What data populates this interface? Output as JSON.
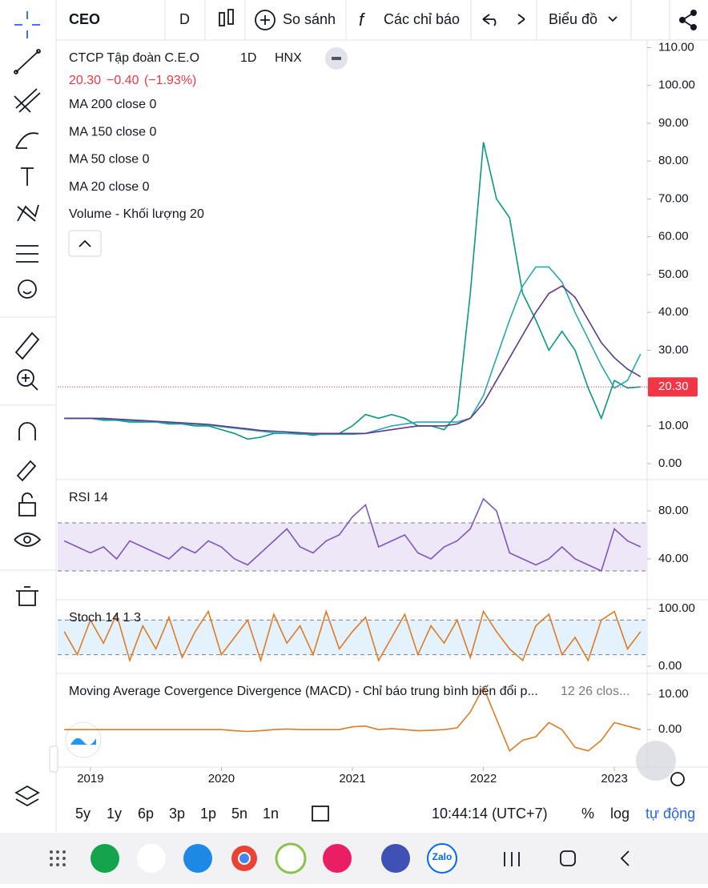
{
  "toolbar": {
    "symbol": "CEO",
    "interval": "D",
    "compare": "So sánh",
    "indicators": "Các chỉ báo",
    "layout": "Biểu đồ"
  },
  "legend": {
    "name": "CTCP Tập đoàn C.E.O",
    "interval": "1D",
    "exchange": "HNX",
    "change": "−0.40",
    "change_pct": "(−1.93%)",
    "studies": [
      "MA 200 close 0",
      "MA 150 close 0",
      "MA 50 close 0",
      "MA 20 close 0",
      "Volume - Khối lượng 20"
    ]
  },
  "chart_data": [
    {
      "type": "line",
      "name": "price",
      "xlim": [
        2018.75,
        2023.25
      ],
      "xticks": [
        2019,
        2020,
        2021,
        2022,
        2023
      ],
      "ylim": [
        -4,
        112
      ],
      "yticks": [
        {
          "value": 110,
          "label": "110.00"
        },
        {
          "value": 100,
          "label": "100.00"
        },
        {
          "value": 90,
          "label": "90.00"
        },
        {
          "value": 80,
          "label": "80.00"
        },
        {
          "value": 70,
          "label": "70.00"
        },
        {
          "value": 60,
          "label": "60.00"
        },
        {
          "value": 50,
          "label": "50.00"
        },
        {
          "value": 40,
          "label": "40.00"
        },
        {
          "value": 30,
          "label": "30.00"
        },
        {
          "value": 20,
          "label": "20.00"
        },
        {
          "value": 10,
          "label": "10.00"
        },
        {
          "value": 0,
          "label": "0.00"
        }
      ],
      "last_price": {
        "value": 20.3,
        "label": "20.30"
      },
      "x": [
        2018.8,
        2018.9,
        2019.0,
        2019.1,
        2019.2,
        2019.3,
        2019.4,
        2019.5,
        2019.6,
        2019.7,
        2019.8,
        2019.9,
        2020.0,
        2020.1,
        2020.2,
        2020.3,
        2020.4,
        2020.5,
        2020.6,
        2020.7,
        2020.8,
        2020.9,
        2021.0,
        2021.1,
        2021.2,
        2021.3,
        2021.4,
        2021.5,
        2021.6,
        2021.7,
        2021.8,
        2021.9,
        2022.0,
        2022.1,
        2022.2,
        2022.3,
        2022.4,
        2022.5,
        2022.6,
        2022.7,
        2022.8,
        2022.9,
        2023.0,
        2023.1,
        2023.2
      ],
      "series": [
        {
          "color": "#089981",
          "values": [
            12,
            12,
            12,
            11.5,
            11.5,
            11,
            11,
            11,
            10.5,
            10.5,
            10,
            10,
            9,
            8,
            6.5,
            7,
            8,
            8,
            8,
            7.5,
            8,
            8,
            10,
            13,
            12,
            13,
            12,
            10,
            10,
            9,
            13,
            45,
            85,
            70,
            65,
            45,
            38,
            30,
            35,
            30,
            20,
            12,
            22,
            20,
            20.3
          ]
        },
        {
          "color": "#26a6b2",
          "values": [
            12,
            12,
            12,
            11.8,
            11.6,
            11.4,
            11.2,
            11,
            10.8,
            10.6,
            10.4,
            10.2,
            9.8,
            9.4,
            9,
            8.6,
            8.2,
            8,
            7.8,
            7.8,
            7.8,
            7.8,
            7.8,
            8,
            9,
            10,
            10.5,
            11,
            11,
            11,
            11,
            12,
            18,
            28,
            38,
            47,
            52,
            52,
            48,
            40,
            33,
            26,
            20,
            22,
            29
          ]
        },
        {
          "color": "#5b3a8e",
          "values": [
            12,
            12,
            12,
            12,
            11.8,
            11.6,
            11.4,
            11.2,
            11,
            10.8,
            10.6,
            10.4,
            10,
            9.6,
            9.2,
            8.8,
            8.6,
            8.4,
            8.2,
            8,
            8,
            8,
            8,
            8,
            8.5,
            9,
            9.5,
            10,
            10,
            10,
            10.5,
            12,
            16,
            22,
            28,
            34,
            40,
            45,
            47,
            44,
            38,
            32,
            28,
            25,
            23
          ]
        }
      ]
    },
    {
      "type": "line",
      "name": "rsi",
      "title": "RSI 14",
      "xlim": [
        2018.75,
        2023.25
      ],
      "ylim": [
        6.7,
        105.3
      ],
      "yticks": [
        {
          "value": 80,
          "label": "80.00"
        },
        {
          "value": 40,
          "label": "40.00"
        }
      ],
      "bands": [
        70,
        30
      ],
      "band_color": "#ede7f8",
      "x": [
        2018.8,
        2018.9,
        2019.0,
        2019.1,
        2019.2,
        2019.3,
        2019.4,
        2019.5,
        2019.6,
        2019.7,
        2019.8,
        2019.9,
        2020.0,
        2020.1,
        2020.2,
        2020.3,
        2020.4,
        2020.5,
        2020.6,
        2020.7,
        2020.8,
        2020.9,
        2021.0,
        2021.1,
        2021.2,
        2021.3,
        2021.4,
        2021.5,
        2021.6,
        2021.7,
        2021.8,
        2021.9,
        2022.0,
        2022.1,
        2022.2,
        2022.3,
        2022.4,
        2022.5,
        2022.6,
        2022.7,
        2022.8,
        2022.9,
        2023.0,
        2023.1,
        2023.2
      ],
      "series": [
        {
          "color": "#7e57c2",
          "values": [
            55,
            50,
            45,
            50,
            40,
            55,
            50,
            45,
            40,
            50,
            45,
            55,
            50,
            40,
            35,
            45,
            55,
            65,
            50,
            45,
            55,
            60,
            75,
            85,
            50,
            55,
            60,
            45,
            40,
            50,
            55,
            65,
            90,
            80,
            45,
            40,
            35,
            40,
            50,
            40,
            35,
            30,
            65,
            55,
            50
          ]
        }
      ]
    },
    {
      "type": "line",
      "name": "stoch",
      "title": "Stoch 14 1 3",
      "xlim": [
        2018.75,
        2023.25
      ],
      "ylim": [
        -11.1,
        113.9
      ],
      "yticks": [
        {
          "value": 100,
          "label": "100.00"
        },
        {
          "value": 0,
          "label": "0.00"
        }
      ],
      "bands": [
        80,
        20
      ],
      "band_color": "#e3f2fd",
      "x": [
        2018.8,
        2018.9,
        2019.0,
        2019.1,
        2019.2,
        2019.3,
        2019.4,
        2019.5,
        2019.6,
        2019.7,
        2019.8,
        2019.9,
        2020.0,
        2020.1,
        2020.2,
        2020.3,
        2020.4,
        2020.5,
        2020.6,
        2020.7,
        2020.8,
        2020.9,
        2021.0,
        2021.1,
        2021.2,
        2021.3,
        2021.4,
        2021.5,
        2021.6,
        2021.7,
        2021.8,
        2021.9,
        2022.0,
        2022.1,
        2022.2,
        2022.3,
        2022.4,
        2022.5,
        2022.6,
        2022.7,
        2022.8,
        2022.9,
        2023.0,
        2023.1,
        2023.2
      ],
      "series": [
        {
          "color": "#e07b24",
          "values": [
            60,
            20,
            80,
            40,
            90,
            10,
            70,
            30,
            85,
            15,
            60,
            95,
            20,
            50,
            80,
            10,
            90,
            40,
            70,
            20,
            95,
            30,
            60,
            85,
            10,
            50,
            90,
            20,
            70,
            40,
            80,
            15,
            95,
            60,
            30,
            10,
            70,
            90,
            20,
            50,
            10,
            80,
            95,
            30,
            60
          ]
        }
      ]
    },
    {
      "type": "line",
      "name": "macd",
      "title": "Moving Average Covergence Divergence (MACD) - Chỉ báo trung bình biến đổi p...",
      "params": "12 26 clos...",
      "xlim": [
        2018.75,
        2023.25
      ],
      "ylim": [
        -10.6,
        15.7
      ],
      "yticks": [
        {
          "value": 10,
          "label": "10.00"
        },
        {
          "value": 0,
          "label": "0.00"
        }
      ],
      "x": [
        2018.8,
        2018.9,
        2019.0,
        2019.1,
        2019.2,
        2019.3,
        2019.4,
        2019.5,
        2019.6,
        2019.7,
        2019.8,
        2019.9,
        2020.0,
        2020.1,
        2020.2,
        2020.3,
        2020.4,
        2020.5,
        2020.6,
        2020.7,
        2020.8,
        2020.9,
        2021.0,
        2021.1,
        2021.2,
        2021.3,
        2021.4,
        2021.5,
        2021.6,
        2021.7,
        2021.8,
        2021.9,
        2022.0,
        2022.1,
        2022.2,
        2022.3,
        2022.4,
        2022.5,
        2022.6,
        2022.7,
        2022.8,
        2022.9,
        2023.0,
        2023.1,
        2023.2
      ],
      "series": [
        {
          "color": "#e07b24",
          "values": [
            0,
            0,
            0,
            0,
            0,
            0,
            0,
            0,
            0,
            0,
            0,
            0,
            0,
            -0.3,
            -0.5,
            -0.3,
            0,
            0.2,
            0,
            0,
            0,
            0,
            0.8,
            1,
            0,
            0.3,
            0,
            -0.3,
            -0.2,
            0,
            0.5,
            5,
            12,
            3,
            -6,
            -3,
            -2,
            2,
            0,
            -5,
            -6,
            -3,
            2,
            1,
            0
          ]
        }
      ]
    }
  ],
  "bottom_bar": {
    "ranges": [
      "5y",
      "1y",
      "6p",
      "3p",
      "1p",
      "5n",
      "1n"
    ],
    "clock": "10:44:14 (UTC+7)",
    "percent": "%",
    "log": "log",
    "auto": "tự động"
  },
  "apps": {
    "zalo": "Zalo"
  }
}
